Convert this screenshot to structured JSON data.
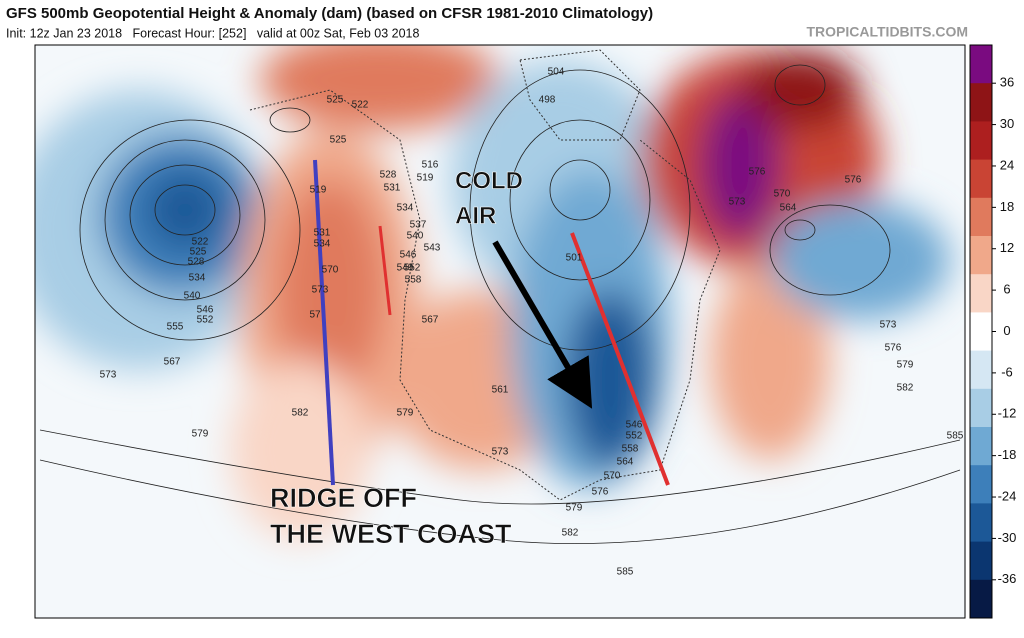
{
  "header": {
    "title": "GFS 500mb Geopotential Height & Anomaly (dam) (based on CFSR 1981-2010 Climatology)",
    "subtitle": "Init: 12z Jan 23 2018   Forecast Hour: [252]   valid at 00z Sat, Feb 03 2018",
    "site": "TROPICALTIDBITS.COM"
  },
  "annotations": {
    "cold_air": [
      "COLD",
      "AIR"
    ],
    "ridge": [
      "RIDGE OFF",
      "THE WEST COAST"
    ]
  },
  "colorbar": {
    "ticks": [
      36,
      30,
      24,
      18,
      12,
      6,
      0,
      -6,
      -12,
      -18,
      -24,
      -30,
      -36
    ],
    "colors": [
      "#7a0b80",
      "#8e1416",
      "#ad1f1f",
      "#c94434",
      "#e07a5d",
      "#f0a88a",
      "#f9d6c6",
      "#ffffff",
      "#d5e7f3",
      "#a8cde5",
      "#6fa9d3",
      "#3d7fba",
      "#1c5897",
      "#0b3670",
      "#071a45"
    ]
  },
  "contour_labels": [
    525,
    522,
    525,
    519,
    528,
    531,
    516,
    519,
    534,
    537,
    540,
    543,
    546,
    549,
    552,
    558,
    531,
    534,
    570,
    573,
    57,
    567,
    579,
    582,
    573,
    561,
    576,
    579,
    582,
    585,
    570,
    564,
    558,
    552,
    546,
    504,
    498,
    501,
    573,
    576,
    570,
    564,
    576,
    573,
    576,
    579,
    582,
    585,
    522,
    525,
    528,
    534,
    540,
    546,
    552,
    555,
    567,
    573,
    579
  ]
}
